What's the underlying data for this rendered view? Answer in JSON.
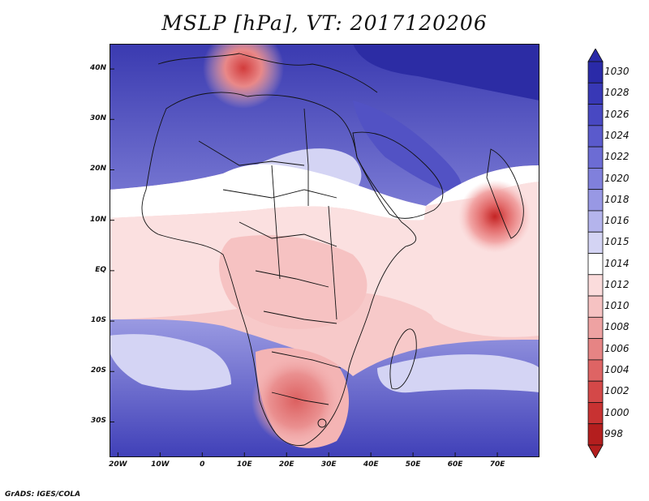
{
  "title": "MSLP [hPa], VT: 2017120206",
  "footer": "GrADS: IGES/COLA",
  "map": {
    "lon_range": [
      -22,
      80
    ],
    "lat_range": [
      -37,
      45
    ],
    "lat_ticks": [
      {
        "value": 40,
        "label": "40N"
      },
      {
        "value": 30,
        "label": "30N"
      },
      {
        "value": 20,
        "label": "20N"
      },
      {
        "value": 10,
        "label": "10N"
      },
      {
        "value": 0,
        "label": "EQ"
      },
      {
        "value": -10,
        "label": "10S"
      },
      {
        "value": -20,
        "label": "20S"
      },
      {
        "value": -30,
        "label": "30S"
      }
    ],
    "lon_ticks": [
      {
        "value": -20,
        "label": "20W"
      },
      {
        "value": -10,
        "label": "10W"
      },
      {
        "value": 0,
        "label": "0"
      },
      {
        "value": 10,
        "label": "10E"
      },
      {
        "value": 20,
        "label": "20E"
      },
      {
        "value": 30,
        "label": "30E"
      },
      {
        "value": 40,
        "label": "40E"
      },
      {
        "value": 50,
        "label": "50E"
      },
      {
        "value": 60,
        "label": "60E"
      },
      {
        "value": 70,
        "label": "70E"
      }
    ]
  },
  "colorbar": {
    "levels": [
      "1030",
      "1028",
      "1026",
      "1024",
      "1022",
      "1020",
      "1018",
      "1016",
      "1015",
      "1014",
      "1012",
      "1010",
      "1008",
      "1006",
      "1004",
      "1002",
      "1000",
      "998"
    ],
    "colors": [
      "#2a2aa8",
      "#3838b6",
      "#4848c2",
      "#5a5acc",
      "#6c6cd4",
      "#8080dc",
      "#9898e4",
      "#b4b4ec",
      "#d4d4f4",
      "#ffffff",
      "#fbdcdc",
      "#f6c2c2",
      "#eea2a2",
      "#e68484",
      "#de6464",
      "#d44848",
      "#c83232",
      "#b41e1e"
    ]
  },
  "features": {
    "colors": {
      "background_blue": "#8a8ad8",
      "deep_blue": "#2c2ca4",
      "tropical_pink": "#f7c9c9",
      "light_pink": "#fbe0e0",
      "white": "#ffffff",
      "low_red": "#d03a3a"
    }
  }
}
